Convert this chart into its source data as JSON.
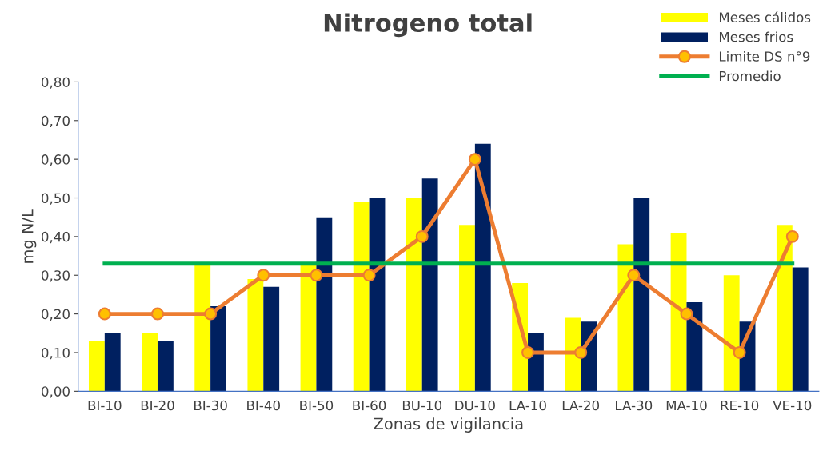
{
  "chart_data": {
    "type": "bar",
    "title": "Nitrogeno total",
    "xlabel": "Zonas de vigilancia",
    "ylabel": "mg N/L",
    "categories": [
      "BI-10",
      "BI-20",
      "BI-30",
      "BI-40",
      "BI-50",
      "BI-60",
      "BU-10",
      "DU-10",
      "LA-10",
      "LA-20",
      "LA-30",
      "MA-10",
      "RE-10",
      "VE-10"
    ],
    "series": [
      {
        "name": "Meses cálidos",
        "color": "#ffff00",
        "values": [
          0.13,
          0.15,
          0.33,
          0.29,
          0.33,
          0.49,
          0.5,
          0.43,
          0.28,
          0.19,
          0.38,
          0.41,
          0.3,
          0.43
        ]
      },
      {
        "name": "Meses frios",
        "color": "#002060",
        "values": [
          0.15,
          0.13,
          0.22,
          0.27,
          0.45,
          0.5,
          0.55,
          0.64,
          0.15,
          0.18,
          0.5,
          0.23,
          0.18,
          0.32
        ]
      },
      {
        "name": "Limite DS n°9",
        "type": "line",
        "color": "#ed7d31",
        "marker": "circle",
        "values": [
          0.2,
          0.2,
          0.2,
          0.3,
          0.3,
          0.3,
          0.4,
          0.6,
          0.1,
          0.1,
          0.3,
          0.2,
          0.1,
          0.4
        ]
      },
      {
        "name": "Promedio",
        "type": "line",
        "color": "#00b050",
        "marker": "none",
        "values": [
          0.33,
          0.33,
          0.33,
          0.33,
          0.33,
          0.33,
          0.33,
          0.33,
          0.33,
          0.33,
          0.33,
          0.33,
          0.33,
          0.33
        ]
      }
    ],
    "ylim": [
      0,
      0.8
    ],
    "yticks": [
      {
        "value": 0,
        "label": "0,00"
      },
      {
        "value": 0.1,
        "label": "0,10"
      },
      {
        "value": 0.2,
        "label": "0,20"
      },
      {
        "value": 0.3,
        "label": "0,30"
      },
      {
        "value": 0.4,
        "label": "0,40"
      },
      {
        "value": 0.5,
        "label": "0,50"
      },
      {
        "value": 0.6,
        "label": "0,60"
      },
      {
        "value": 0.7,
        "label": "0,70"
      },
      {
        "value": 0.8,
        "label": "0,80"
      }
    ],
    "grid": false,
    "legend": "top right"
  }
}
